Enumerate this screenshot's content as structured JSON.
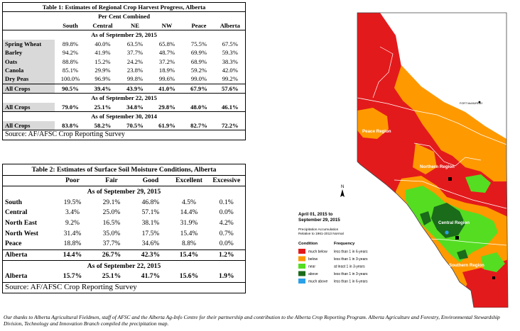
{
  "table1": {
    "title": "Table 1: Estimates of Regional Crop Harvest Progress, Alberta",
    "subtitle": "Per Cent Combined",
    "columns": [
      "",
      "South",
      "Central",
      "NE",
      "NW",
      "Peace",
      "Alberta"
    ],
    "sections": [
      {
        "heading": "As of September 29, 2015",
        "rows": [
          {
            "label": "Spring Wheat",
            "values": [
              "89.8%",
              "40.0%",
              "63.5%",
              "65.8%",
              "75.5%",
              "67.5%"
            ]
          },
          {
            "label": "Barley",
            "values": [
              "94.2%",
              "41.9%",
              "37.7%",
              "48.7%",
              "69.9%",
              "59.3%"
            ]
          },
          {
            "label": "Oats",
            "values": [
              "88.8%",
              "15.2%",
              "24.2%",
              "37.2%",
              "68.9%",
              "38.3%"
            ]
          },
          {
            "label": "Canola",
            "values": [
              "85.1%",
              "29.9%",
              "23.8%",
              "18.9%",
              "59.2%",
              "42.0%"
            ]
          },
          {
            "label": "Dry Peas",
            "values": [
              "100.0%",
              "96.9%",
              "99.8%",
              "99.6%",
              "99.0%",
              "99.2%"
            ]
          },
          {
            "label": "All Crops",
            "values": [
              "90.5%",
              "39.4%",
              "43.9%",
              "41.0%",
              "67.9%",
              "57.6%"
            ]
          }
        ]
      },
      {
        "heading": "As of September 22, 2015",
        "rows": [
          {
            "label": "All Crops",
            "values": [
              "79.0%",
              "25.1%",
              "34.8%",
              "29.8%",
              "48.0%",
              "46.1%"
            ]
          }
        ]
      },
      {
        "heading": "As of September 30, 2014",
        "rows": [
          {
            "label": "All Crops",
            "values": [
              "83.8%",
              "58.2%",
              "70.5%",
              "61.9%",
              "82.7%",
              "72.2%"
            ]
          }
        ]
      }
    ],
    "source": "Source: AF/AFSC Crop Reporting Survey"
  },
  "table2": {
    "title": "Table 2: Estimates of Surface Soil Moisture Conditions, Alberta",
    "columns": [
      "",
      "Poor",
      "Fair",
      "Good",
      "Excellent",
      "Excessive"
    ],
    "sections": [
      {
        "heading": "As of September 29, 2015",
        "rows": [
          {
            "label": "South",
            "values": [
              "19.5%",
              "29.1%",
              "46.8%",
              "4.5%",
              "0.1%"
            ]
          },
          {
            "label": "Central",
            "values": [
              "3.4%",
              "25.0%",
              "57.1%",
              "14.4%",
              "0.0%"
            ]
          },
          {
            "label": "North East",
            "values": [
              "9.2%",
              "16.5%",
              "38.1%",
              "31.9%",
              "4.2%"
            ]
          },
          {
            "label": "North West",
            "values": [
              "31.4%",
              "35.0%",
              "17.5%",
              "15.4%",
              "0.7%"
            ]
          },
          {
            "label": "Peace",
            "values": [
              "18.8%",
              "37.7%",
              "34.6%",
              "8.8%",
              "0.0%"
            ]
          },
          {
            "label": "Alberta",
            "values": [
              "14.4%",
              "26.7%",
              "42.3%",
              "15.4%",
              "1.2%"
            ]
          }
        ]
      },
      {
        "heading": "As of September 22, 2015",
        "rows": [
          {
            "label": "Alberta",
            "values": [
              "15.7%",
              "25.1%",
              "41.7%",
              "15.6%",
              "1.9%"
            ]
          }
        ]
      }
    ],
    "source": "Source: AF/AFSC Crop Reporting Survey"
  },
  "map": {
    "region_labels": {
      "peace": "Peace Region",
      "northern": "Northern Region",
      "central": "Central Region",
      "southern": "Southern Region"
    },
    "city_label": "FORT McMURRAY",
    "north_label": "N",
    "period_title_1": "April 01, 2015 to",
    "period_title_2": "September 29, 2015",
    "subtitle_1": "Precipitation Accumulation",
    "subtitle_2": "Relative to 1961-2013 Normal",
    "legend_headers": {
      "condition": "Condition",
      "frequency": "Frequency"
    },
    "legend": [
      {
        "condition": "much below",
        "frequency": "less than 1 in 6-years",
        "color": "#e31a1c"
      },
      {
        "condition": "below",
        "frequency": "less than 1 in 3-years",
        "color": "#ff9900"
      },
      {
        "condition": "near",
        "frequency": "at least 1 in 3-years",
        "color": "#55dd22"
      },
      {
        "condition": "above",
        "frequency": "less than 1 in 3-years",
        "color": "#1a6b1a"
      },
      {
        "condition": "much above",
        "frequency": "less than 1 in 6-years",
        "color": "#2aa0e8"
      }
    ],
    "colors": {
      "much_below": "#e31a1c",
      "below": "#ff9900",
      "near": "#55dd22",
      "above": "#1a6b1a",
      "much_above": "#2aa0e8"
    }
  },
  "footer": "Our thanks to Alberta Agricultural Fieldmen, staff of AFSC and the Alberta Ag-Info Centre for their partnership and contribution to the Alberta Crop Reporting Program. Alberta Agriculture and Forestry, Environmental Stewardship Division, Technology and Innovation Branch compiled the precipitation map."
}
